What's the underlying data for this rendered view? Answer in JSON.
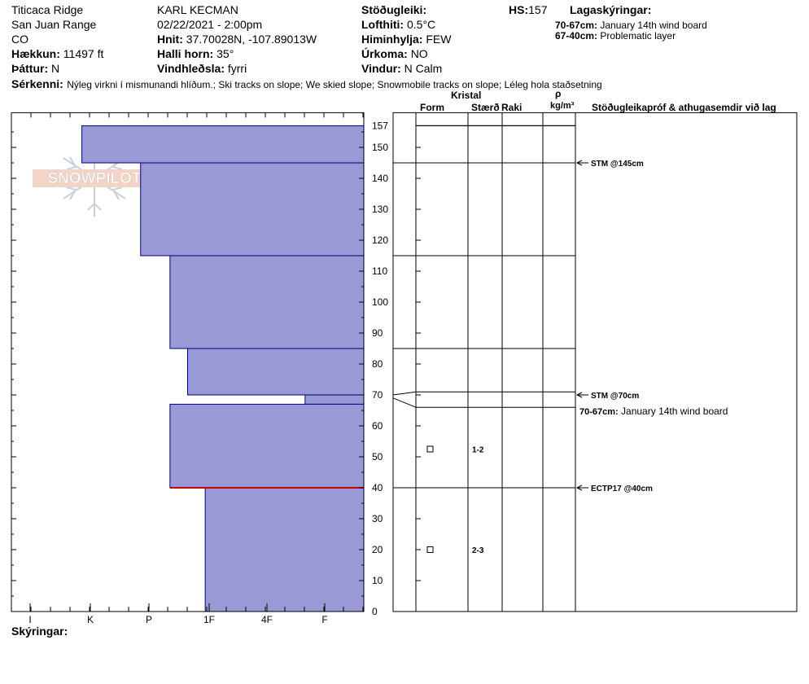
{
  "header": {
    "location": "Titicaca Ridge",
    "range": "San Juan Range",
    "state": "CO",
    "elevation_label": "Hækkun:",
    "elevation_value": "11497 ft",
    "aspect_label": "Þáttur:",
    "aspect_value": "N",
    "observer": "KARL KECMAN",
    "datetime": "02/22/2021 - 2:00pm",
    "coords_label": "Hnit:",
    "coords_value": "37.70028N, -107.89013W",
    "slope_label": "Halli horn:",
    "slope_value": "35°",
    "wind_loading_label": "Vindhleðsla:",
    "wind_loading_value": "fyrri",
    "stability_label": "Stöðugleiki:",
    "air_temp_label": "Lofthiti:",
    "air_temp_value": "0.5°C",
    "sky_label": "Himinhylja:",
    "sky_value": "FEW",
    "precip_label": "Úrkoma:",
    "precip_value": "NO",
    "wind_label": "Vindur:",
    "wind_value": "N Calm",
    "hs_label": "HS:",
    "hs_value": "157",
    "layer_notes_label": "Lagaskýringar:",
    "layer_notes": [
      {
        "range": "70-67cm:",
        "text": "January 14th wind board"
      },
      {
        "range": "67-40cm:",
        "text": "Problematic layer"
      }
    ],
    "features_label": "Sérkenni:",
    "features_value": "Nýleg virkni í mismunandi hlíðum.; Ski tracks on slope; We skied slope; Snowmobile tracks on slope; Léleg hola staðsetning"
  },
  "table_header": {
    "crystal": "Kristal",
    "form": "Form",
    "size": "Stærð",
    "moisture": "Raki",
    "rho": "ρ",
    "density_unit": "kg/m³",
    "tests": "Stöðugleikapróf & athugasemdir við lag"
  },
  "footer": {
    "notes_label": "Skýringar:"
  },
  "logo_text": "SNOWPILOT",
  "chart_data": {
    "type": "bar",
    "orientation": "horizontal",
    "description_axis": "depth (cm)",
    "ylim": [
      0,
      157
    ],
    "yticks": [
      0,
      10,
      20,
      30,
      40,
      50,
      60,
      70,
      80,
      90,
      100,
      110,
      120,
      130,
      140,
      150,
      157
    ],
    "hardness_categories": [
      "I",
      "K",
      "P",
      "1F",
      "4F",
      "F"
    ],
    "layers": [
      {
        "bottom": 145,
        "top": 157,
        "hardness": "F-"
      },
      {
        "bottom": 115,
        "top": 145,
        "hardness": "4F"
      },
      {
        "bottom": 85,
        "top": 115,
        "hardness": "1F+"
      },
      {
        "bottom": 70,
        "top": 85,
        "hardness": "1F"
      },
      {
        "bottom": 67,
        "top": 70,
        "hardness": "P+"
      },
      {
        "bottom": 40,
        "top": 67,
        "hardness": "1F+"
      },
      {
        "bottom": 0,
        "top": 40,
        "hardness": "4F-"
      }
    ],
    "layer_hardness_values": [
      5.8,
      4.8,
      4.3,
      4.0,
      2.0,
      4.3,
      3.7
    ],
    "fill_color": "#9999d6",
    "critical_layer_depth": 40,
    "critical_layer_color": "#cc0000",
    "crystals": [
      {
        "depth": 52.5,
        "size": "1-2"
      },
      {
        "depth": 20,
        "size": "2-3"
      }
    ],
    "tests": [
      {
        "depth": 145,
        "label": "STM @145cm"
      },
      {
        "depth": 70,
        "label": "STM @70cm"
      },
      {
        "depth": 40,
        "label": "ECTP17 @40cm"
      }
    ],
    "inline_note": {
      "range": "70-67cm:",
      "text": "January 14th wind board"
    }
  }
}
